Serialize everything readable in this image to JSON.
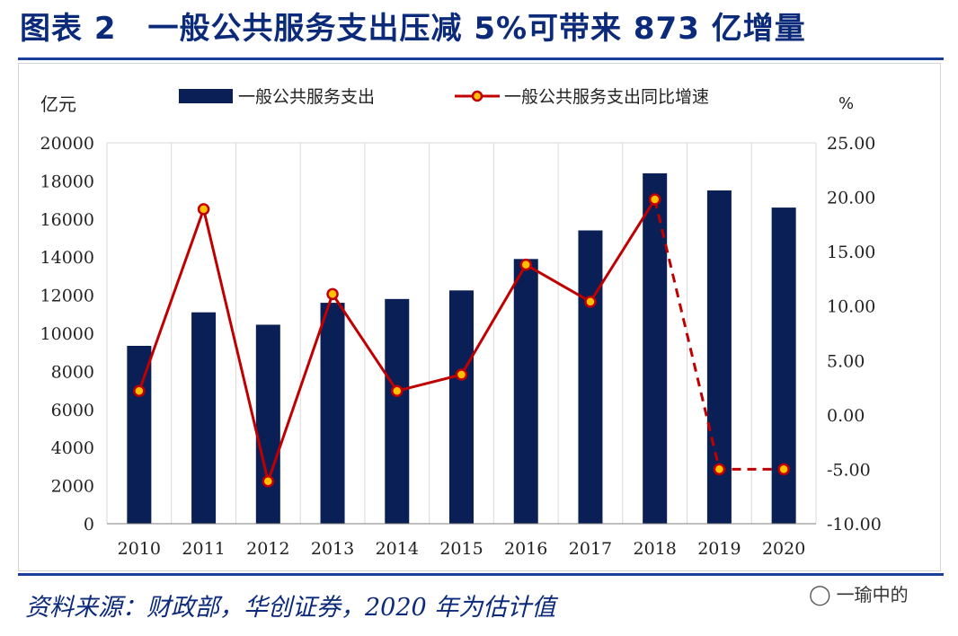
{
  "figure": {
    "title": "图表 2　一般公共服务支出压减 5%可带来 873 亿增量",
    "source": "资料来源：财政部，华创证券，2020 年为估计值",
    "watermark": "一瑜中的",
    "watermark_icon": "wechat-icon"
  },
  "chart_data": {
    "type": "bar+line",
    "categories": [
      "2010",
      "2011",
      "2012",
      "2013",
      "2014",
      "2015",
      "2016",
      "2017",
      "2018",
      "2019",
      "2020"
    ],
    "series": [
      {
        "name": "一般公共服务支出",
        "kind": "bar",
        "axis": "left",
        "color": "#0a1f55",
        "values": [
          9340,
          11100,
          10450,
          11600,
          11800,
          12250,
          13900,
          15400,
          18400,
          17500,
          16600
        ]
      },
      {
        "name": "一般公共服务支出同比增速",
        "kind": "line",
        "axis": "right",
        "color": "#c00000",
        "marker_fill": "#ffc000",
        "values": [
          2.2,
          18.9,
          -6.1,
          11.1,
          2.2,
          3.7,
          13.8,
          10.4,
          19.8,
          -5.0,
          -5.0
        ],
        "dashed_from_index": 8
      }
    ],
    "y_left": {
      "label": "亿元",
      "range": [
        0,
        20000
      ],
      "ticks": [
        "0",
        "2000",
        "4000",
        "6000",
        "8000",
        "10000",
        "12000",
        "14000",
        "16000",
        "18000",
        "20000"
      ]
    },
    "y_right": {
      "label": "%",
      "range": [
        -10,
        25
      ],
      "ticks": [
        "-10.00",
        "-5.00",
        "0.00",
        "5.00",
        "10.00",
        "15.00",
        "20.00",
        "25.00"
      ]
    },
    "grid": "vertical",
    "legend": "top"
  }
}
